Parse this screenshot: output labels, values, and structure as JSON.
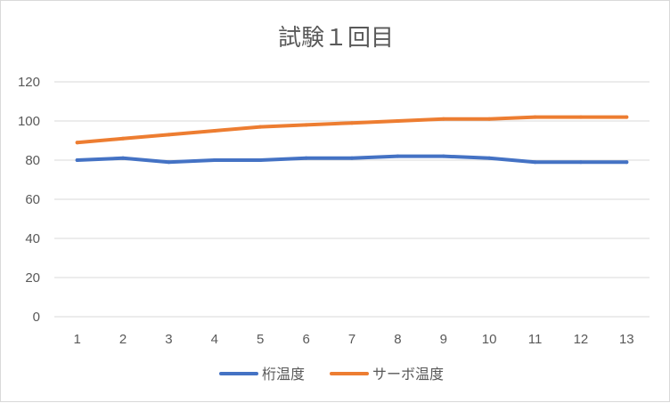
{
  "chart_data": {
    "type": "line",
    "title": "試験１回目",
    "xlabel": "",
    "ylabel": "",
    "x": [
      1,
      2,
      3,
      4,
      5,
      6,
      7,
      8,
      9,
      10,
      11,
      12,
      13
    ],
    "ylim": [
      0,
      120
    ],
    "yticks": [
      0,
      20,
      40,
      60,
      80,
      100,
      120
    ],
    "grid": true,
    "legend_position": "bottom",
    "series": [
      {
        "name": "桁温度",
        "color": "#4472C4",
        "values": [
          80,
          81,
          79,
          80,
          80,
          81,
          81,
          82,
          82,
          81,
          79,
          79,
          79
        ]
      },
      {
        "name": "サーボ温度",
        "color": "#ED7D31",
        "values": [
          89,
          91,
          93,
          95,
          97,
          98,
          99,
          100,
          101,
          101,
          102,
          102,
          102
        ]
      }
    ]
  }
}
